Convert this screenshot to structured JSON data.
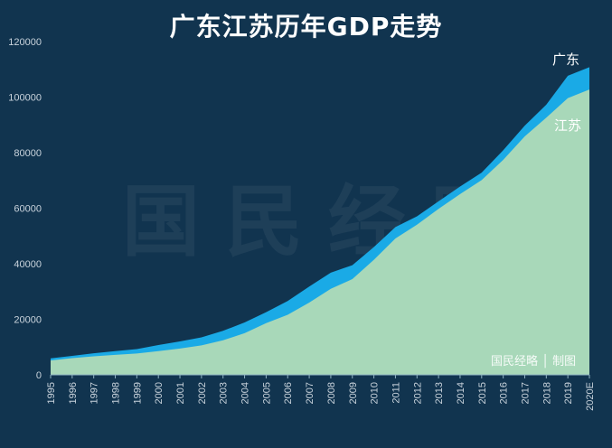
{
  "chart_data": {
    "type": "area",
    "title": "广东江苏历年GDP走势",
    "xlabel": "",
    "ylabel": "",
    "categories": [
      "1995",
      "1996",
      "1997",
      "1998",
      "1999",
      "2000",
      "2001",
      "2002",
      "2003",
      "2004",
      "2005",
      "2006",
      "2007",
      "2008",
      "2009",
      "2010",
      "2011",
      "2012",
      "2013",
      "2014",
      "2015",
      "2016",
      "2017",
      "2018",
      "2019",
      "2020E"
    ],
    "ylim": [
      0,
      120000
    ],
    "yticks": [
      0,
      20000,
      40000,
      60000,
      80000,
      100000,
      120000
    ],
    "grid": false,
    "series": [
      {
        "name": "广东",
        "color": "#1aaae6",
        "values": [
          5933,
          6835,
          7775,
          8531,
          9251,
          10741,
          12039,
          13502,
          15845,
          18865,
          22557,
          26588,
          31777,
          36797,
          39483,
          46013,
          53210,
          57068,
          62475,
          67810,
          72813,
          80855,
          89705,
          97278,
          107671,
          110761
        ]
      },
      {
        "name": "江苏",
        "color": "#a8d8b9",
        "values": [
          5155,
          6004,
          6680,
          7200,
          7698,
          8554,
          9457,
          10607,
          12443,
          15004,
          18599,
          21645,
          26018,
          30982,
          34457,
          41425,
          49110,
          54058,
          59753,
          65088,
          70116,
          77388,
          85870,
          92595,
          99632,
          102719
        ]
      }
    ]
  },
  "watermark": "国民经略",
  "credit": "国民经略 │ 制图",
  "colors": {
    "background": "#11344f"
  }
}
